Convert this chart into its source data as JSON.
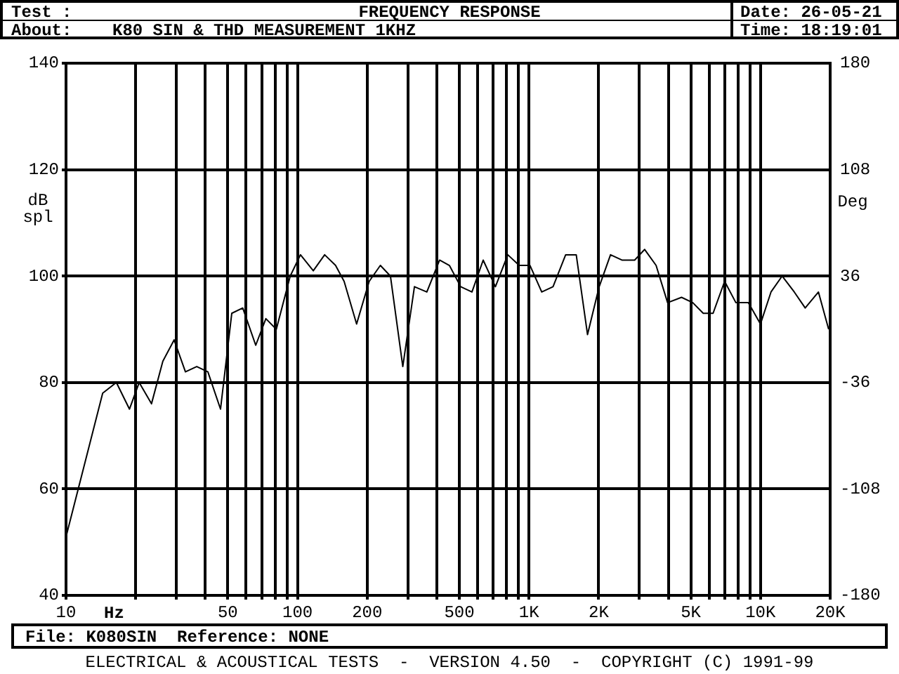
{
  "chart_data": {
    "type": "line",
    "title": "FREQUENCY RESPONSE",
    "xlabel": "Hz",
    "ylabel": "dB spl",
    "y2label": "Deg",
    "annotations": [
      "Test :",
      "About:",
      "K80 SIN & THD MEASUREMENT 1KHZ",
      "Date: 26-05-21",
      "Time: 18:19:01",
      "File: K080SIN  Reference: NONE",
      "ELECTRICAL & ACOUSTICAL TESTS  -  VERSION 4.50  -  COPYRIGHT (C) 1991-99"
    ],
    "series": [
      {
        "color": "#000000",
        "x": [
          10,
          14.4,
          16.5,
          18.8,
          20.7,
          23.4,
          26.2,
          29.3,
          32.8,
          36.7,
          41,
          46.5,
          52,
          58,
          66,
          73,
          81,
          93,
          103,
          117,
          131,
          146,
          159,
          180,
          204,
          228,
          252,
          285,
          320,
          362,
          411,
          453,
          507,
          567,
          634,
          716,
          810,
          907,
          1010,
          1135,
          1270,
          1440,
          1600,
          1790,
          2010,
          2250,
          2520,
          2860,
          3160,
          3540,
          3970,
          4560,
          5100,
          5660,
          6240,
          7000,
          7830,
          8860,
          10000,
          11100,
          12400,
          14000,
          15600,
          17800,
          19700
        ],
        "values": [
          51,
          78,
          80,
          75,
          80,
          76,
          84,
          88,
          82,
          83,
          82,
          75,
          93,
          94,
          87,
          92,
          90,
          100,
          104,
          101,
          104,
          102,
          99,
          91,
          99,
          102,
          100,
          83,
          98,
          97,
          103,
          102,
          98,
          97,
          103,
          98,
          104,
          102,
          102,
          97,
          98,
          104,
          104,
          89,
          98,
          104,
          103,
          103,
          105,
          102,
          95,
          96,
          95,
          93,
          93,
          99,
          95,
          95,
          91,
          97,
          100,
          97,
          94,
          97,
          90
        ]
      }
    ],
    "log": "x",
    "xlim": [
      10,
      20000
    ],
    "xticks": [
      {
        "value": 10,
        "label": "10"
      },
      {
        "value": 20,
        "label": null
      },
      {
        "value": 30,
        "label": null
      },
      {
        "value": 40,
        "label": null
      },
      {
        "value": 50,
        "label": "50"
      },
      {
        "value": 60,
        "label": null
      },
      {
        "value": 70,
        "label": null
      },
      {
        "value": 80,
        "label": null
      },
      {
        "value": 90,
        "label": null
      },
      {
        "value": 100,
        "label": "100"
      },
      {
        "value": 200,
        "label": "200"
      },
      {
        "value": 300,
        "label": null
      },
      {
        "value": 400,
        "label": null
      },
      {
        "value": 500,
        "label": "500"
      },
      {
        "value": 600,
        "label": null
      },
      {
        "value": 700,
        "label": null
      },
      {
        "value": 800,
        "label": null
      },
      {
        "value": 900,
        "label": null
      },
      {
        "value": 1000,
        "label": "1K"
      },
      {
        "value": 2000,
        "label": "2K"
      },
      {
        "value": 3000,
        "label": null
      },
      {
        "value": 4000,
        "label": null
      },
      {
        "value": 5000,
        "label": "5K"
      },
      {
        "value": 6000,
        "label": null
      },
      {
        "value": 7000,
        "label": null
      },
      {
        "value": 8000,
        "label": null
      },
      {
        "value": 9000,
        "label": null
      },
      {
        "value": 10000,
        "label": "10K"
      },
      {
        "value": 20000,
        "label": "20K"
      }
    ],
    "ylim": [
      40,
      140
    ],
    "yticks": [
      40,
      60,
      80,
      100,
      120,
      140
    ],
    "y2lim": [
      -180,
      180
    ],
    "y2ticks": [
      -180,
      -108,
      -36,
      36,
      108,
      180
    ],
    "grid": true,
    "legend": false,
    "marker": "none",
    "line_style": "solid"
  }
}
